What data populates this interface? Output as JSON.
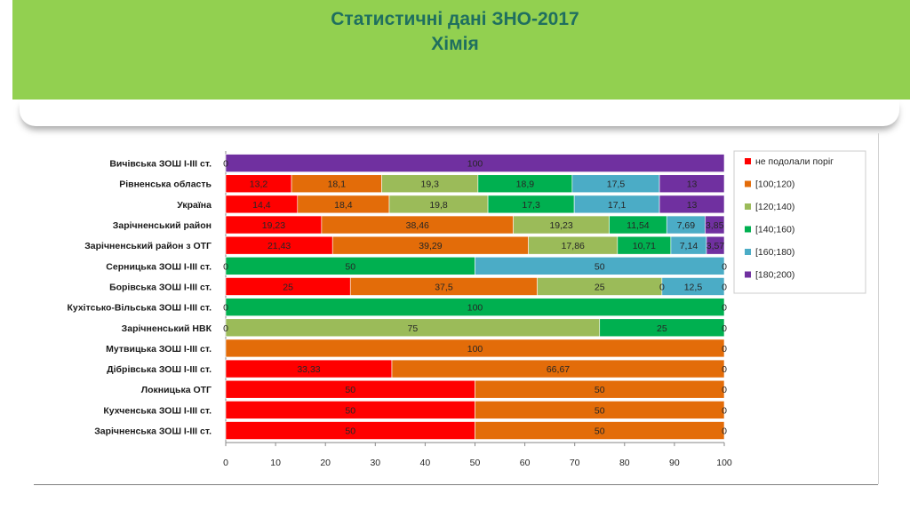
{
  "slide": {
    "title_line1": "Статистичні дані  ЗНО-2017",
    "title_line2": "Хімія"
  },
  "chart_data": {
    "type": "bar",
    "orientation": "horizontal",
    "stacked": true,
    "title": "",
    "xlabel": "",
    "ylabel": "",
    "xlim": [
      0,
      100
    ],
    "x_ticks": [
      0,
      10,
      20,
      30,
      40,
      50,
      60,
      70,
      80,
      90,
      100
    ],
    "grid": false,
    "legend_position": "right",
    "categories": [
      "Вичівська  ЗОШ І-ІІІ ст.",
      "Рівненська  область",
      "Україна",
      "Зарічненський  район",
      "Зарічненський  район з ОТГ",
      "Серницька  ЗОШ І-ІІІ ст.",
      "Борівська  ЗОШ І-ІІІ ст.",
      "Кухітсько-Вільська  ЗОШ І-ІІІ ст.",
      "Зарічненський  НВК",
      "Мутвицька  ЗОШ І-ІІІ ст.",
      "Дібрівська  ЗОШ І-ІІІ ст.",
      "Локницька  ОТГ",
      "Кухченська  ЗОШ І-ІІІ ст.",
      "Зарічненська  ЗОШ І-ІІІ ст."
    ],
    "series": [
      {
        "name": "не подолали поріг",
        "color": "#ff0000",
        "values": [
          0,
          13.2,
          14.4,
          19.23,
          21.43,
          0,
          25,
          0,
          0,
          0,
          33.33,
          50,
          50,
          50
        ],
        "labels": [
          "0",
          "13,2",
          "14,4",
          "19,23",
          "21,43",
          "0",
          "25",
          "0",
          "0",
          "",
          "33,33",
          "50",
          "50",
          "50"
        ]
      },
      {
        "name": "[100;120)",
        "color": "#e36c09",
        "values": [
          0,
          18.1,
          18.4,
          38.46,
          39.29,
          0,
          37.5,
          0,
          0,
          100,
          66.67,
          50,
          50,
          50
        ],
        "labels": [
          "",
          "18,1",
          "18,4",
          "38,46",
          "39,29",
          "",
          "37,5",
          "",
          "",
          "100",
          "66,67",
          "50",
          "50",
          "50"
        ]
      },
      {
        "name": "[120;140)",
        "color": "#9bbb59",
        "values": [
          0,
          19.3,
          19.8,
          19.23,
          17.86,
          0,
          25,
          0,
          75,
          0,
          0,
          0,
          0,
          0
        ],
        "labels": [
          "",
          "19,3",
          "19,8",
          "19,23",
          "17,86",
          "",
          "25",
          "",
          "75",
          "",
          "",
          "",
          "",
          ""
        ]
      },
      {
        "name": "[140;160)",
        "color": "#00b050",
        "values": [
          0,
          18.9,
          17.3,
          11.54,
          10.71,
          50,
          0,
          100,
          25,
          0,
          0,
          0,
          0,
          0
        ],
        "labels": [
          "",
          "18,9",
          "17,3",
          "11,54",
          "10,71",
          "50",
          "0",
          "100",
          "25",
          "",
          "",
          "",
          "",
          ""
        ]
      },
      {
        "name": "[160;180)",
        "color": "#4bacc6",
        "values": [
          0,
          17.5,
          17.1,
          7.69,
          7.14,
          50,
          12.5,
          0,
          0,
          0,
          0,
          0,
          0,
          0
        ],
        "labels": [
          "",
          "17,5",
          "17,1",
          "7,69",
          "7,14",
          "50",
          "12,5",
          "",
          "",
          "",
          "",
          "",
          "",
          ""
        ]
      },
      {
        "name": "[180;200)",
        "color": "#7030a0",
        "values": [
          100,
          13,
          13,
          3.85,
          3.57,
          0,
          0,
          0,
          0,
          0,
          0,
          0,
          0,
          0
        ],
        "labels": [
          "100",
          "13",
          "13",
          "3,85",
          "3,57",
          "0",
          "0",
          "0",
          "0",
          "0",
          "0",
          "0",
          "0",
          "0"
        ]
      }
    ]
  }
}
